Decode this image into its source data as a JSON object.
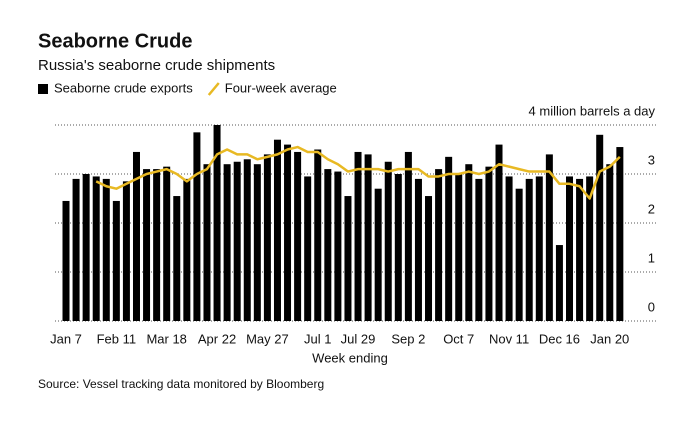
{
  "chart_data": {
    "type": "bar",
    "title": "Seaborne Crude",
    "subtitle": "Russia's seaborne crude shipments",
    "x_label": "Week ending",
    "source": "Source: Vessel tracking data monitored by Bloomberg",
    "categories": [
      "Jan 7",
      null,
      null,
      null,
      null,
      "Feb 11",
      null,
      null,
      null,
      null,
      "Mar 18",
      null,
      null,
      null,
      null,
      "Apr 22",
      null,
      null,
      null,
      null,
      "May 27",
      null,
      null,
      null,
      null,
      "Jul 1",
      null,
      null,
      null,
      "Jul 29",
      null,
      null,
      null,
      null,
      "Sep 2",
      null,
      null,
      null,
      null,
      "Oct 7",
      null,
      null,
      null,
      null,
      "Nov 11",
      null,
      null,
      null,
      null,
      "Dec 16",
      null,
      null,
      null,
      null,
      "Jan 20",
      null
    ],
    "series": [
      {
        "name": "Seaborne crude exports",
        "type": "bar",
        "color": "#000000",
        "values": [
          2.45,
          2.9,
          3.0,
          2.95,
          2.9,
          2.45,
          2.85,
          3.45,
          3.1,
          3.1,
          3.15,
          2.55,
          2.9,
          3.85,
          3.2,
          4.0,
          3.2,
          3.25,
          3.3,
          3.2,
          3.4,
          3.7,
          3.6,
          3.45,
          2.95,
          3.5,
          3.1,
          3.05,
          2.55,
          3.45,
          3.4,
          2.7,
          3.25,
          3.0,
          3.45,
          2.9,
          2.55,
          3.1,
          3.35,
          3.0,
          3.2,
          2.9,
          3.15,
          3.6,
          2.95,
          2.7,
          2.9,
          2.95,
          3.4,
          1.55,
          2.95,
          2.9,
          2.95,
          3.8,
          3.2,
          3.55
        ]
      },
      {
        "name": "Four-week average",
        "type": "line",
        "color": "#e8b923",
        "values": [
          null,
          null,
          null,
          2.85,
          2.75,
          2.7,
          2.8,
          2.9,
          3.0,
          3.05,
          3.1,
          3.0,
          2.85,
          3.0,
          3.1,
          3.4,
          3.5,
          3.4,
          3.4,
          3.3,
          3.35,
          3.4,
          3.5,
          3.55,
          3.45,
          3.45,
          3.3,
          3.2,
          3.05,
          3.1,
          3.1,
          3.1,
          3.05,
          3.1,
          3.1,
          3.1,
          2.95,
          2.95,
          3.0,
          3.0,
          3.05,
          3.0,
          3.05,
          3.2,
          3.15,
          3.1,
          3.05,
          3.05,
          3.05,
          2.8,
          2.8,
          2.75,
          2.5,
          3.05,
          3.15,
          3.35
        ]
      }
    ],
    "ylim": [
      0,
      4
    ],
    "yticks": [
      0,
      1,
      2,
      3,
      {
        "value": 4,
        "label": "4 million barrels a day"
      }
    ],
    "grid": true
  }
}
